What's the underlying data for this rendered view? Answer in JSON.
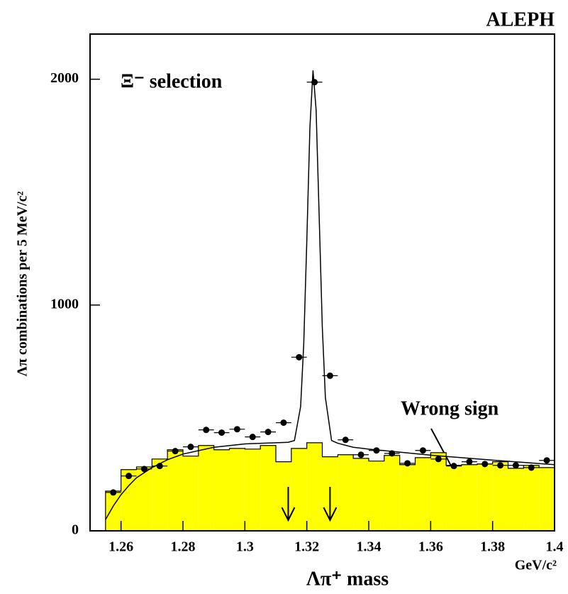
{
  "chart_data": {
    "type": "composite",
    "title": "ALEPH",
    "xlabel": "Λπ⁺ mass",
    "xunit": "GeV/c²",
    "ylabel": "Λπ combinations per 5 MeV/c²",
    "annotation": "Ξ⁻ selection",
    "arrows": [
      1.314,
      1.3275
    ],
    "xlim": [
      1.25,
      1.4
    ],
    "ylim": [
      0,
      2200
    ],
    "xticks": [
      1.26,
      1.28,
      1.3,
      1.32,
      1.34,
      1.36,
      1.38,
      1.4
    ],
    "yticks": [
      0,
      1000,
      2000
    ],
    "series": [
      {
        "type": "histogram",
        "name": "Wrong sign",
        "color": "#ffff00",
        "bins": [
          1.255,
          1.26,
          1.265,
          1.27,
          1.275,
          1.28,
          1.285,
          1.29,
          1.295,
          1.3,
          1.305,
          1.31,
          1.315,
          1.32,
          1.325,
          1.33,
          1.335,
          1.34,
          1.345,
          1.35,
          1.355,
          1.36,
          1.365,
          1.37,
          1.375,
          1.38,
          1.385,
          1.39,
          1.395,
          1.4
        ],
        "values": [
          176,
          271,
          283,
          318,
          359,
          331,
          378,
          359,
          365,
          362,
          378,
          306,
          365,
          390,
          328,
          337,
          321,
          309,
          334,
          293,
          324,
          346,
          290,
          293,
          296,
          306,
          277,
          290,
          280
        ]
      },
      {
        "type": "scatter",
        "color": "#000000",
        "x": [
          1.2575,
          1.2625,
          1.2675,
          1.2725,
          1.2775,
          1.2825,
          1.2875,
          1.2925,
          1.2975,
          1.3025,
          1.3075,
          1.3125,
          1.3175,
          1.3225,
          1.3275,
          1.3325,
          1.3375,
          1.3425,
          1.3475,
          1.3525,
          1.3575,
          1.3625,
          1.3675,
          1.3725,
          1.3775,
          1.3825,
          1.3875,
          1.3925,
          1.3975
        ],
        "values": [
          170,
          243,
          274,
          287,
          353,
          372,
          447,
          435,
          450,
          416,
          438,
          479,
          769,
          1987,
          687,
          403,
          337,
          356,
          343,
          299,
          356,
          318,
          287,
          306,
          296,
          290,
          290,
          280,
          312
        ]
      },
      {
        "type": "line",
        "color": "#000000",
        "x": [
          1.255,
          1.2575,
          1.26,
          1.2625,
          1.265,
          1.27,
          1.275,
          1.28,
          1.29,
          1.3,
          1.31,
          1.314,
          1.316,
          1.318,
          1.319,
          1.32,
          1.321,
          1.322,
          1.323,
          1.324,
          1.325,
          1.326,
          1.328,
          1.33,
          1.335,
          1.34,
          1.36,
          1.38,
          1.4
        ],
        "values": [
          50,
          110,
          160,
          200,
          235,
          280,
          315,
          340,
          370,
          385,
          390,
          392,
          400,
          550,
          825,
          1285,
          1785,
          2039,
          1865,
          1390,
          904,
          590,
          400,
          388,
          370,
          362,
          335,
          313,
          293
        ]
      }
    ]
  }
}
